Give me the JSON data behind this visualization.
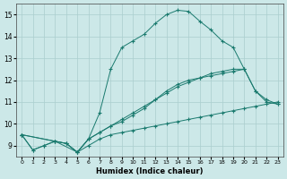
{
  "xlabel": "Humidex (Indice chaleur)",
  "xlim": [
    -0.5,
    23.5
  ],
  "ylim": [
    8.5,
    15.5
  ],
  "yticks": [
    9,
    10,
    11,
    12,
    13,
    14,
    15
  ],
  "xticks": [
    0,
    1,
    2,
    3,
    4,
    5,
    6,
    7,
    8,
    9,
    10,
    11,
    12,
    13,
    14,
    15,
    16,
    17,
    18,
    19,
    20,
    21,
    22,
    23
  ],
  "bg_color": "#cce8e8",
  "line_color": "#1a7a6e",
  "grid_color": "#aacece",
  "series": [
    {
      "x": [
        0,
        1,
        2,
        3,
        4,
        5,
        6,
        7,
        8,
        9,
        10,
        11,
        12,
        13,
        14,
        15,
        16,
        17,
        18,
        19,
        20
      ],
      "y": [
        9.5,
        8.8,
        9.0,
        9.2,
        9.1,
        8.7,
        9.3,
        10.5,
        12.5,
        13.5,
        13.8,
        14.1,
        14.6,
        15.0,
        15.2,
        15.15,
        14.7,
        14.3,
        13.8,
        13.5,
        12.5
      ]
    },
    {
      "x": [
        0,
        1,
        2,
        3,
        4,
        5,
        6,
        7,
        8,
        9,
        10,
        11,
        12,
        13,
        14,
        15,
        16,
        17,
        18,
        19,
        20,
        21,
        22,
        23
      ],
      "y": [
        9.5,
        8.8,
        9.0,
        9.2,
        9.1,
        8.7,
        9.3,
        9.6,
        9.9,
        10.2,
        10.5,
        10.8,
        11.1,
        11.4,
        11.7,
        11.9,
        12.1,
        12.3,
        12.4,
        12.5,
        12.5,
        11.5,
        11.0,
        10.9
      ]
    },
    {
      "x": [
        0,
        3,
        5,
        6,
        7,
        8,
        9,
        10,
        11,
        12,
        13,
        14,
        15,
        16,
        17,
        18,
        19,
        20,
        21,
        22,
        23
      ],
      "y": [
        9.5,
        9.2,
        8.7,
        9.0,
        9.3,
        9.5,
        9.6,
        9.7,
        9.8,
        9.9,
        10.0,
        10.1,
        10.2,
        10.3,
        10.4,
        10.5,
        10.6,
        10.7,
        10.8,
        10.9,
        11.0
      ]
    },
    {
      "x": [
        0,
        3,
        4,
        5,
        6,
        7,
        8,
        9,
        10,
        11,
        12,
        13,
        14,
        15,
        16,
        17,
        18,
        19,
        20,
        21,
        22,
        23
      ],
      "y": [
        9.5,
        9.2,
        9.1,
        8.7,
        9.3,
        9.6,
        9.9,
        10.1,
        10.4,
        10.7,
        11.1,
        11.5,
        11.8,
        12.0,
        12.1,
        12.2,
        12.3,
        12.4,
        12.5,
        11.5,
        11.1,
        10.9
      ]
    }
  ]
}
